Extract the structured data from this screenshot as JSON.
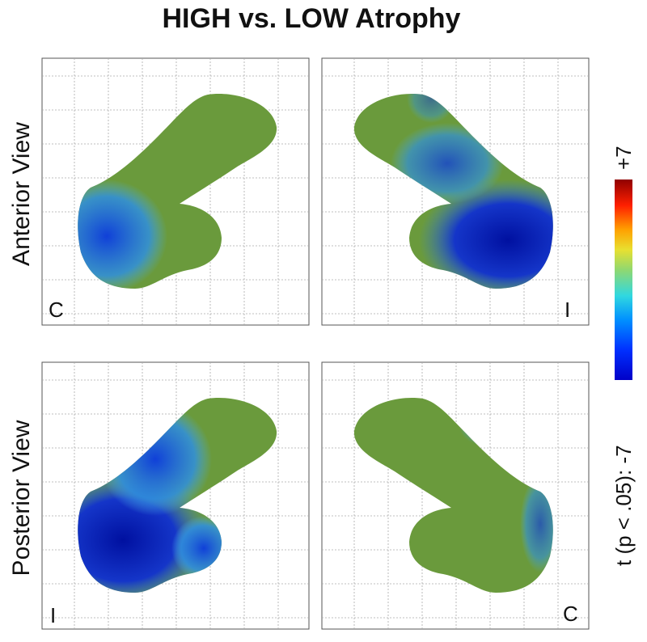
{
  "title": "HIGH vs. LOW Atrophy",
  "rows": [
    {
      "label": "Anterior View"
    },
    {
      "label": "Posterior View"
    }
  ],
  "panels": [
    {
      "corner": "C"
    },
    {
      "corner": "I"
    },
    {
      "corner": "I"
    },
    {
      "corner": "C"
    }
  ],
  "colorbar": {
    "label": "t (p < .05): -7",
    "max": "+7"
  }
}
